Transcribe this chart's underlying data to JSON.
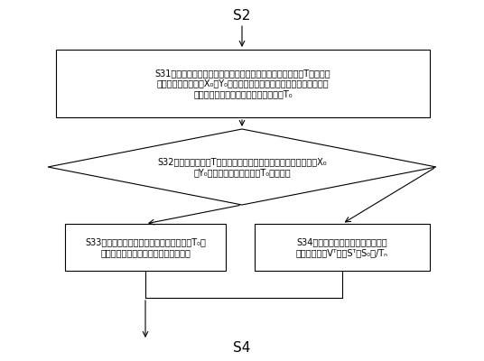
{
  "background_color": "#ffffff",
  "S2_text": "S2",
  "S4_text": "S4",
  "S31_text": "S31：调取当前快速公交车辆的运行时刻表，实时将当前时刻T的快速公\n交车辆的位置坐标（X₀，Y₀）关联到所述运行时刻表中与之距离最近的\n基准位置，将其对应的基准时刻设置为T₀",
  "S32_text": "S32：比较当前时刻T与当前时刻下的快速公交车辆的位置坐标（X₀\n，Y₀）所对应的的基准时刻T₀是否相等",
  "S33_text": "S33：提示快速公交车辆按照执行时刻表中T₀的\n下一个基准时刻所对应的基准速度行驶",
  "S34_text": "S34：提示快速公交车辆按照如下速\n度进行行驶：Vᵀ－（Sᵀ－S₀）/Tₙ",
  "font_size_label": 11,
  "font_size_box": 7,
  "lw": 0.8
}
